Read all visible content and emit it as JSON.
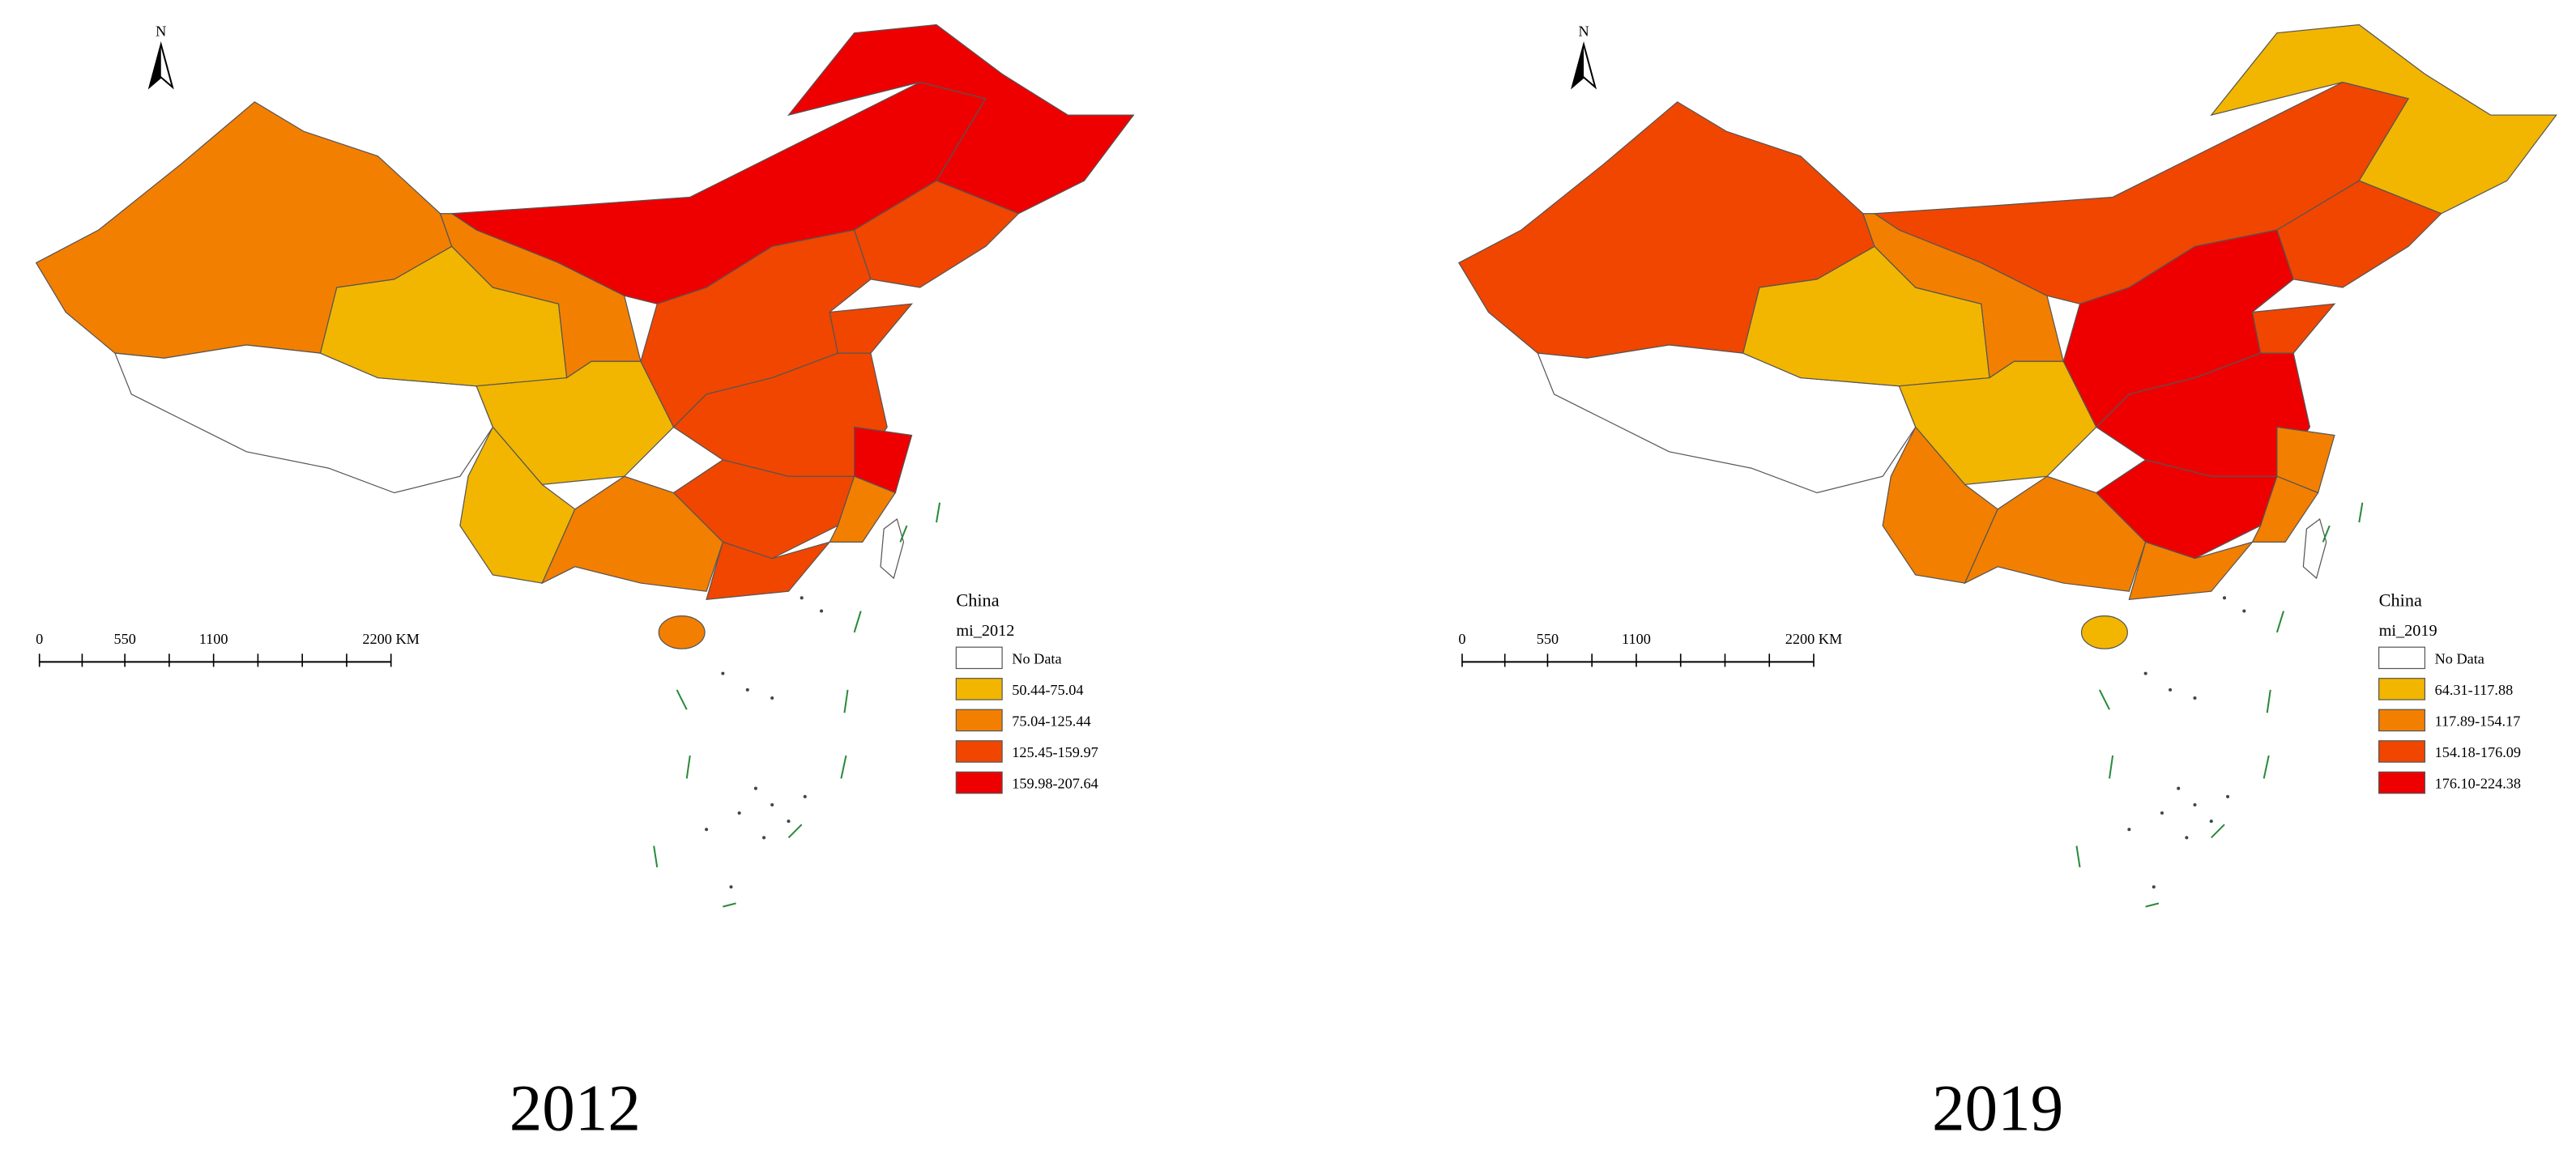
{
  "maps": [
    {
      "north": "N",
      "scale_labels": [
        "0",
        "550",
        "1100",
        "2200 KM"
      ],
      "legend": {
        "title": "China",
        "field": "mi_2012",
        "items": [
          {
            "label": "No Data",
            "color": "#ffffff"
          },
          {
            "label": "50.44-75.04",
            "color": "#f2b600"
          },
          {
            "label": "75.04-125.44",
            "color": "#f37f00"
          },
          {
            "label": "125.45-159.97",
            "color": "#f04600"
          },
          {
            "label": "159.98-207.64",
            "color": "#ee0000"
          }
        ]
      },
      "caption": "2012"
    },
    {
      "north": "N",
      "scale_labels": [
        "0",
        "550",
        "1100",
        "2200 KM"
      ],
      "legend": {
        "title": "China",
        "field": "mi_2019",
        "items": [
          {
            "label": "No Data",
            "color": "#ffffff"
          },
          {
            "label": "64.31-117.88",
            "color": "#f2b600"
          },
          {
            "label": "117.89-154.17",
            "color": "#f37f00"
          },
          {
            "label": "154.18-176.09",
            "color": "#f04600"
          },
          {
            "label": "176.10-224.38",
            "color": "#ee0000"
          }
        ]
      },
      "caption": "2019"
    }
  ]
}
